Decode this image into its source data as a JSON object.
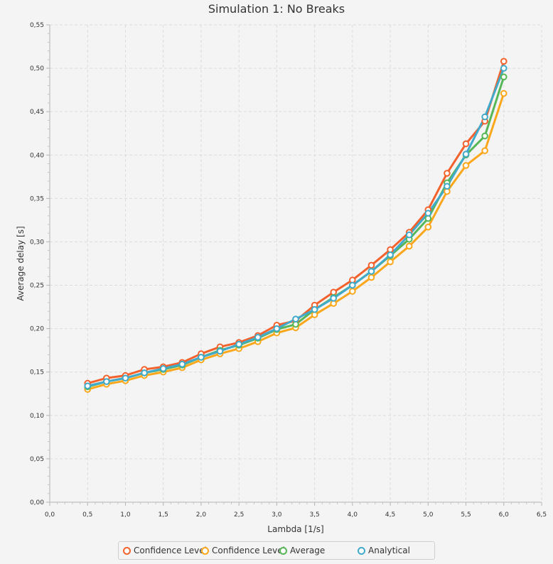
{
  "chart_data": {
    "type": "line",
    "title": "Simulation 1: No Breaks",
    "xlabel": "Lambda [1/s]",
    "ylabel": "Average delay [s]",
    "xlim": [
      0,
      6.5
    ],
    "ylim": [
      0,
      0.55
    ],
    "x_ticks": [
      "0,0",
      "0,5",
      "1,0",
      "1,5",
      "2,0",
      "2,5",
      "3,0",
      "3,5",
      "4,0",
      "4,5",
      "5,0",
      "5,5",
      "6,0",
      "6,5"
    ],
    "y_ticks": [
      "0,00",
      "0,05",
      "0,10",
      "0,15",
      "0,20",
      "0,25",
      "0,30",
      "0,35",
      "0,40",
      "0,45",
      "0,50",
      "0,55"
    ],
    "grid": true,
    "legend_position": "bottom",
    "x": [
      0.5,
      0.75,
      1.0,
      1.25,
      1.5,
      1.75,
      2.0,
      2.25,
      2.5,
      2.75,
      3.0,
      3.25,
      3.5,
      3.75,
      4.0,
      4.25,
      4.5,
      4.75,
      5.0,
      5.25,
      5.5,
      5.75,
      6.0
    ],
    "series": [
      {
        "name": "Confidence Level",
        "color": "#f3622d",
        "values": [
          0.137,
          0.143,
          0.146,
          0.153,
          0.156,
          0.161,
          0.171,
          0.179,
          0.184,
          0.192,
          0.204,
          0.209,
          0.227,
          0.242,
          0.256,
          0.273,
          0.291,
          0.311,
          0.337,
          0.379,
          0.413,
          0.439,
          0.508
        ]
      },
      {
        "name": "Confidence Level",
        "color": "#fba71b",
        "values": [
          0.13,
          0.136,
          0.14,
          0.146,
          0.15,
          0.155,
          0.164,
          0.171,
          0.177,
          0.185,
          0.195,
          0.201,
          0.216,
          0.229,
          0.243,
          0.259,
          0.277,
          0.295,
          0.317,
          0.358,
          0.388,
          0.405,
          0.471
        ]
      },
      {
        "name": "Average",
        "color": "#57b757",
        "values": [
          0.133,
          0.139,
          0.143,
          0.149,
          0.153,
          0.158,
          0.167,
          0.175,
          0.181,
          0.189,
          0.199,
          0.205,
          0.222,
          0.236,
          0.25,
          0.266,
          0.284,
          0.303,
          0.327,
          0.368,
          0.4,
          0.422,
          0.49
        ]
      },
      {
        "name": "Analytical",
        "color": "#41a9c9",
        "values": [
          0.134,
          0.139,
          0.143,
          0.149,
          0.154,
          0.159,
          0.167,
          0.174,
          0.182,
          0.19,
          0.2,
          0.211,
          0.222,
          0.235,
          0.25,
          0.266,
          0.285,
          0.308,
          0.333,
          0.364,
          0.401,
          0.444,
          0.5
        ]
      }
    ]
  }
}
